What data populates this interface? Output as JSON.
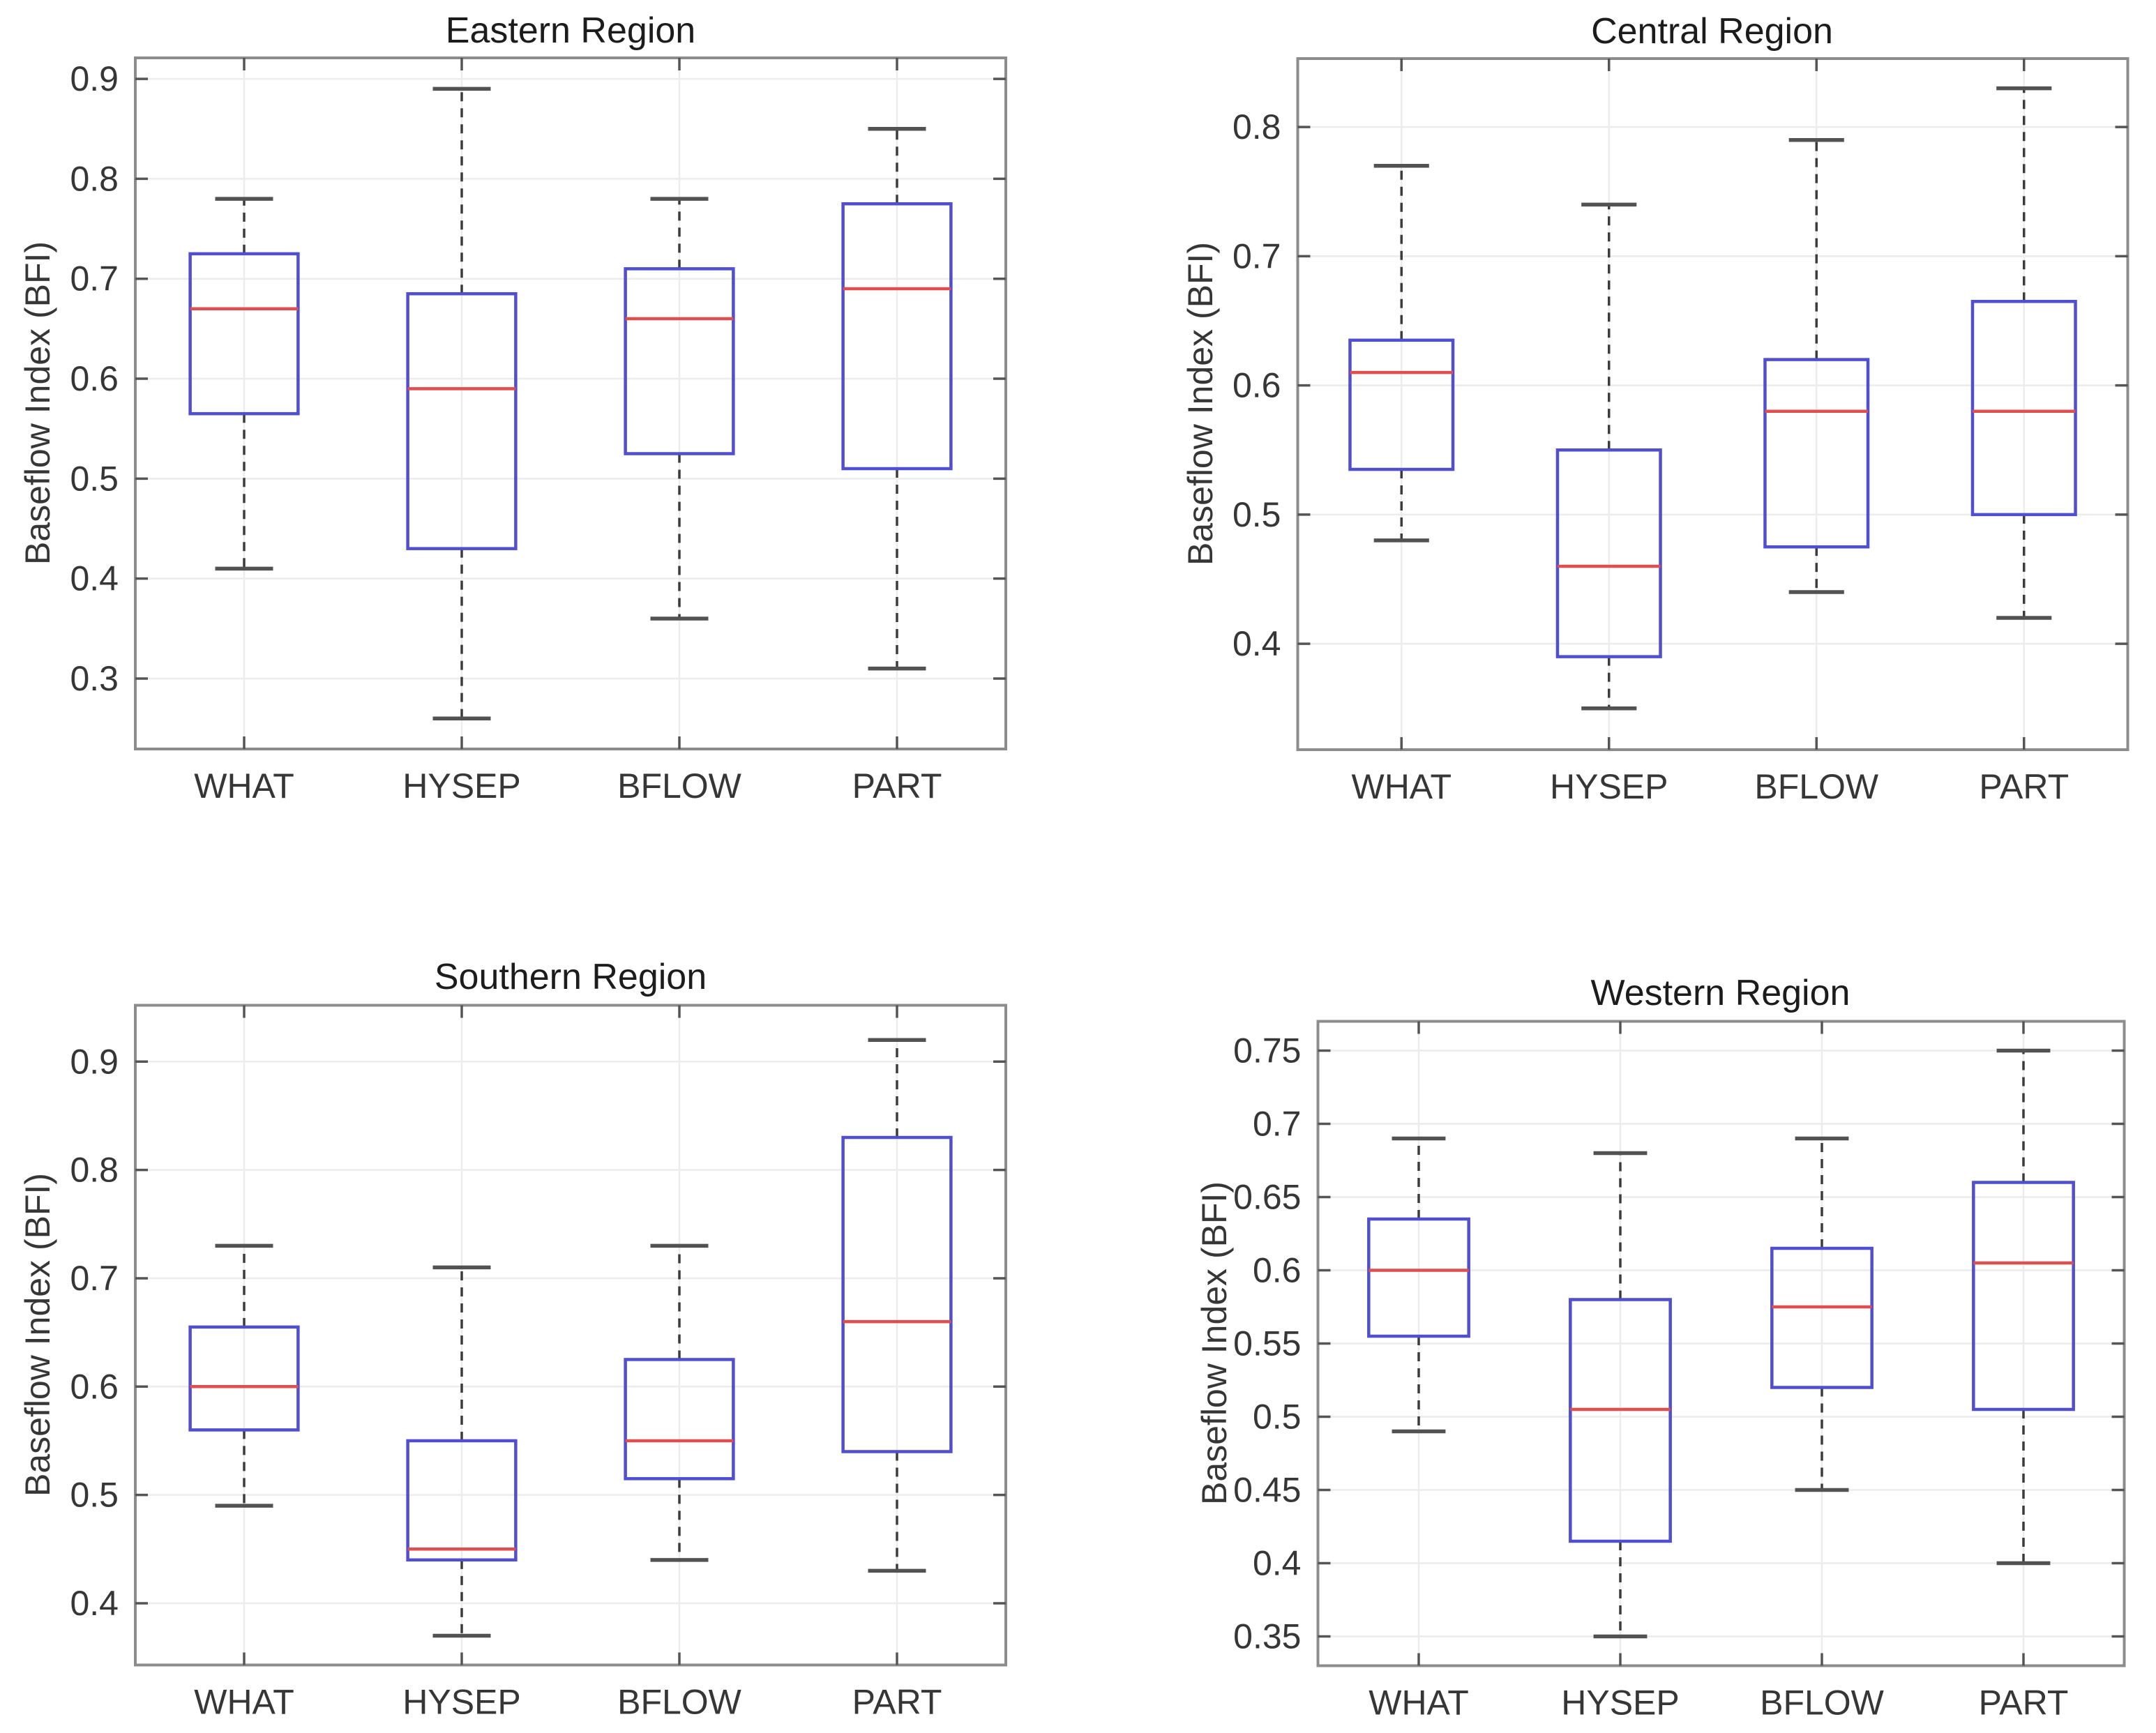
{
  "page": {
    "background": "#ffffff"
  },
  "colors": {
    "box": "#4f4fd0",
    "median": "#e04f4f",
    "whisker": "#3c3c3c",
    "cap": "#525252",
    "grid": "#ececec",
    "frame": "#8c8c8c",
    "tick": "#555555",
    "text": "#363636",
    "title": "#1c1c1c",
    "background": "#ffffff"
  },
  "chart_data": [
    {
      "type": "boxplot",
      "title": "Eastern Region",
      "ylabel": "Baseflow Index (BFI)",
      "xlabel": "",
      "categories": [
        "WHAT",
        "HYSEP",
        "BFLOW",
        "PART"
      ],
      "ylim": [
        0.2295,
        0.921
      ],
      "yticks": [
        0.3,
        0.4,
        0.5,
        0.6,
        0.7,
        0.8,
        0.9
      ],
      "ytick_labels": [
        "0.3",
        "0.4",
        "0.5",
        "0.6",
        "0.7",
        "0.8",
        "0.9"
      ],
      "grid": true,
      "series": [
        {
          "name": "WHAT",
          "whisker_low": 0.41,
          "q1": 0.565,
          "median": 0.67,
          "q3": 0.725,
          "whisker_high": 0.78
        },
        {
          "name": "HYSEP",
          "whisker_low": 0.26,
          "q1": 0.43,
          "median": 0.59,
          "q3": 0.685,
          "whisker_high": 0.89
        },
        {
          "name": "BFLOW",
          "whisker_low": 0.36,
          "q1": 0.525,
          "median": 0.66,
          "q3": 0.71,
          "whisker_high": 0.78
        },
        {
          "name": "PART",
          "whisker_low": 0.31,
          "q1": 0.51,
          "median": 0.69,
          "q3": 0.775,
          "whisker_high": 0.85
        }
      ]
    },
    {
      "type": "boxplot",
      "title": "Central Region",
      "ylabel": "Baseflow Index (BFI)",
      "xlabel": "",
      "categories": [
        "WHAT",
        "HYSEP",
        "BFLOW",
        "PART"
      ],
      "ylim": [
        0.318,
        0.853
      ],
      "yticks": [
        0.4,
        0.5,
        0.6,
        0.7,
        0.8
      ],
      "ytick_labels": [
        "0.4",
        "0.5",
        "0.6",
        "0.7",
        "0.8"
      ],
      "grid": true,
      "series": [
        {
          "name": "WHAT",
          "whisker_low": 0.48,
          "q1": 0.535,
          "median": 0.61,
          "q3": 0.635,
          "whisker_high": 0.77
        },
        {
          "name": "HYSEP",
          "whisker_low": 0.35,
          "q1": 0.39,
          "median": 0.46,
          "q3": 0.55,
          "whisker_high": 0.74
        },
        {
          "name": "BFLOW",
          "whisker_low": 0.44,
          "q1": 0.475,
          "median": 0.58,
          "q3": 0.62,
          "whisker_high": 0.79
        },
        {
          "name": "PART",
          "whisker_low": 0.42,
          "q1": 0.5,
          "median": 0.58,
          "q3": 0.665,
          "whisker_high": 0.83
        }
      ]
    },
    {
      "type": "boxplot",
      "title": "Southern Region",
      "ylabel": "Baseflow Index (BFI)",
      "xlabel": "",
      "categories": [
        "WHAT",
        "HYSEP",
        "BFLOW",
        "PART"
      ],
      "ylim": [
        0.343,
        0.952
      ],
      "yticks": [
        0.4,
        0.5,
        0.6,
        0.7,
        0.8,
        0.9
      ],
      "ytick_labels": [
        "0.4",
        "0.5",
        "0.6",
        "0.7",
        "0.8",
        "0.9"
      ],
      "grid": true,
      "series": [
        {
          "name": "WHAT",
          "whisker_low": 0.49,
          "q1": 0.56,
          "median": 0.6,
          "q3": 0.655,
          "whisker_high": 0.73
        },
        {
          "name": "HYSEP",
          "whisker_low": 0.37,
          "q1": 0.44,
          "median": 0.45,
          "q3": 0.55,
          "whisker_high": 0.71
        },
        {
          "name": "BFLOW",
          "whisker_low": 0.44,
          "q1": 0.515,
          "median": 0.55,
          "q3": 0.625,
          "whisker_high": 0.73
        },
        {
          "name": "PART",
          "whisker_low": 0.43,
          "q1": 0.54,
          "median": 0.66,
          "q3": 0.83,
          "whisker_high": 0.92
        }
      ]
    },
    {
      "type": "boxplot",
      "title": "Western Region",
      "ylabel": "Baseflow Index (BFI)",
      "xlabel": "",
      "categories": [
        "WHAT",
        "HYSEP",
        "BFLOW",
        "PART"
      ],
      "ylim": [
        0.33,
        0.77
      ],
      "yticks": [
        0.35,
        0.4,
        0.45,
        0.5,
        0.55,
        0.6,
        0.65,
        0.7,
        0.75
      ],
      "ytick_labels": [
        "0.35",
        "0.4",
        "0.45",
        "0.5",
        "0.55",
        "0.6",
        "0.65",
        "0.7",
        "0.75"
      ],
      "grid": true,
      "series": [
        {
          "name": "WHAT",
          "whisker_low": 0.49,
          "q1": 0.555,
          "median": 0.6,
          "q3": 0.635,
          "whisker_high": 0.69
        },
        {
          "name": "HYSEP",
          "whisker_low": 0.35,
          "q1": 0.415,
          "median": 0.505,
          "q3": 0.58,
          "whisker_high": 0.68
        },
        {
          "name": "BFLOW",
          "whisker_low": 0.45,
          "q1": 0.52,
          "median": 0.575,
          "q3": 0.615,
          "whisker_high": 0.69
        },
        {
          "name": "PART",
          "whisker_low": 0.4,
          "q1": 0.505,
          "median": 0.605,
          "q3": 0.66,
          "whisker_high": 0.75
        }
      ]
    }
  ]
}
